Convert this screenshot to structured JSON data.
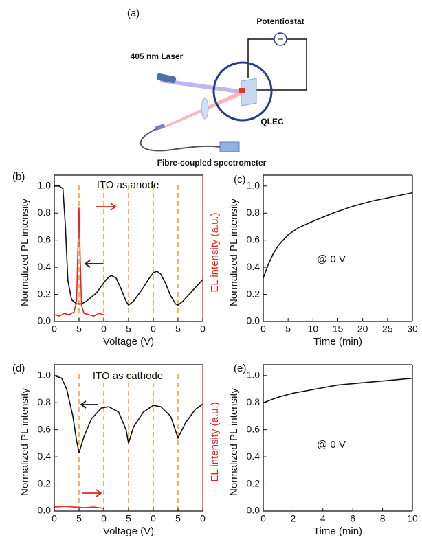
{
  "diagram": {
    "panel_label": "(a)",
    "potentiostat": "Potentiostat",
    "laser": "405 nm Laser",
    "device": "QLEC",
    "detector": "Fibre-coupled spectrometer"
  },
  "chart_data": [
    {
      "type": "line",
      "label": "(b)",
      "annotation": "ITO as anode",
      "xlabel": "Voltage (V)",
      "ylabel": "Normalized PL intensity",
      "y2label": "EL intensity (a.u.)",
      "y2_color": "#e8251f",
      "guide_color": "#f5a03a",
      "xlim": [
        0,
        6
      ],
      "xticks": [
        0,
        {
          "value": 1,
          "label": "5"
        },
        {
          "value": 2,
          "label": "0"
        },
        {
          "value": 3,
          "label": "5"
        },
        {
          "value": 4,
          "label": "0"
        },
        {
          "value": 5,
          "label": "5"
        },
        {
          "value": 6,
          "label": "0"
        }
      ],
      "ylim": [
        0,
        1.08
      ],
      "yticks": [
        {
          "value": 0,
          "label": "0.0"
        },
        0.2,
        0.4,
        0.6,
        0.8,
        {
          "value": 1,
          "label": "1.0"
        }
      ],
      "y2lim": [
        0,
        1.08
      ],
      "series": [
        {
          "color": "#111111",
          "x": [
            0,
            0.2,
            0.35,
            0.45,
            0.55,
            0.7,
            0.9,
            1.1,
            1.3,
            1.5,
            1.7,
            1.9,
            2.1,
            2.3,
            2.5,
            2.7,
            2.9,
            3.0,
            3.2,
            3.4,
            3.6,
            3.8,
            4.0,
            4.15,
            4.3,
            4.5,
            4.7,
            4.9,
            5.0,
            5.2,
            5.4,
            5.6,
            5.8,
            6.0
          ],
          "values": [
            1.0,
            1.0,
            0.98,
            0.7,
            0.3,
            0.16,
            0.13,
            0.13,
            0.15,
            0.18,
            0.21,
            0.26,
            0.31,
            0.34,
            0.32,
            0.24,
            0.15,
            0.12,
            0.15,
            0.2,
            0.25,
            0.31,
            0.36,
            0.37,
            0.35,
            0.28,
            0.19,
            0.13,
            0.12,
            0.15,
            0.19,
            0.23,
            0.27,
            0.31
          ]
        },
        {
          "color": "#e8251f",
          "axis": "y2",
          "x": [
            0,
            0.2,
            0.4,
            0.6,
            0.8,
            0.9,
            0.95,
            1.0,
            1.05,
            1.1,
            1.2,
            1.4,
            1.6,
            1.8,
            2.0
          ],
          "values": [
            0.05,
            0.04,
            0.06,
            0.05,
            0.07,
            0.15,
            0.5,
            0.84,
            0.45,
            0.12,
            0.06,
            0.05,
            0.04,
            0.06,
            0.05
          ]
        }
      ]
    },
    {
      "type": "line",
      "label": "(c)",
      "annotation": "@ 0 V",
      "xlabel": "Time (min)",
      "ylabel": "Normalized PL intensity",
      "xlim": [
        0,
        30
      ],
      "xticks": [
        0,
        5,
        10,
        15,
        20,
        25,
        30
      ],
      "ylim": [
        0,
        1.08
      ],
      "yticks": [
        {
          "value": 0,
          "label": "0.0"
        },
        0.2,
        0.4,
        0.6,
        0.8,
        {
          "value": 1,
          "label": "1.0"
        }
      ],
      "series": [
        {
          "color": "#111111",
          "x": [
            0,
            1,
            2,
            3,
            4,
            5,
            7,
            10,
            14,
            18,
            22,
            26,
            30
          ],
          "values": [
            0.32,
            0.42,
            0.5,
            0.56,
            0.6,
            0.64,
            0.69,
            0.74,
            0.8,
            0.85,
            0.89,
            0.92,
            0.95
          ]
        }
      ]
    },
    {
      "type": "line",
      "label": "(d)",
      "annotation": "ITO as cathode",
      "xlabel": "Voltage (V)",
      "ylabel": "Normalized PL intensity",
      "y2label": "EL intensity (a.u.)",
      "y2_color": "#e8251f",
      "guide_color": "#f5a03a",
      "xlim": [
        0,
        6
      ],
      "xticks": [
        0,
        {
          "value": 1,
          "label": "5"
        },
        {
          "value": 2,
          "label": "0"
        },
        {
          "value": 3,
          "label": "5"
        },
        {
          "value": 4,
          "label": "0"
        },
        {
          "value": 5,
          "label": "5"
        },
        {
          "value": 6,
          "label": "0"
        }
      ],
      "ylim": [
        0,
        1.08
      ],
      "yticks": [
        {
          "value": 0,
          "label": "0.0"
        },
        0.2,
        0.4,
        0.6,
        0.8,
        {
          "value": 1,
          "label": "1.0"
        }
      ],
      "y2lim": [
        0,
        1.08
      ],
      "series": [
        {
          "color": "#111111",
          "x": [
            0,
            0.3,
            0.5,
            0.75,
            0.9,
            1.0,
            1.2,
            1.5,
            1.9,
            2.2,
            2.6,
            2.9,
            3.0,
            3.2,
            3.6,
            4.0,
            4.3,
            4.7,
            5.0,
            5.3,
            5.7,
            6.0
          ],
          "values": [
            1.0,
            0.98,
            0.9,
            0.7,
            0.52,
            0.43,
            0.55,
            0.68,
            0.76,
            0.77,
            0.73,
            0.6,
            0.5,
            0.62,
            0.73,
            0.78,
            0.77,
            0.7,
            0.54,
            0.65,
            0.75,
            0.79
          ]
        },
        {
          "color": "#e8251f",
          "axis": "y2",
          "x": [
            0,
            0.4,
            0.8,
            1.2,
            1.6,
            2.0
          ],
          "values": [
            0.03,
            0.035,
            0.03,
            0.025,
            0.03,
            0.02
          ]
        }
      ]
    },
    {
      "type": "line",
      "label": "(e)",
      "annotation": "@ 0 V",
      "xlabel": "Time (min)",
      "ylabel": "Normalized PL intensity",
      "xlim": [
        0,
        10
      ],
      "xticks": [
        0,
        2,
        4,
        6,
        8,
        10
      ],
      "ylim": [
        0,
        1.08
      ],
      "yticks": [
        {
          "value": 0,
          "label": "0.0"
        },
        0.2,
        0.4,
        0.6,
        0.8,
        {
          "value": 1,
          "label": "1.0"
        }
      ],
      "series": [
        {
          "color": "#111111",
          "x": [
            0,
            1,
            2,
            3,
            4,
            5,
            6,
            7,
            8,
            9,
            10
          ],
          "values": [
            0.8,
            0.84,
            0.87,
            0.89,
            0.91,
            0.93,
            0.94,
            0.95,
            0.96,
            0.97,
            0.98
          ]
        }
      ]
    }
  ]
}
